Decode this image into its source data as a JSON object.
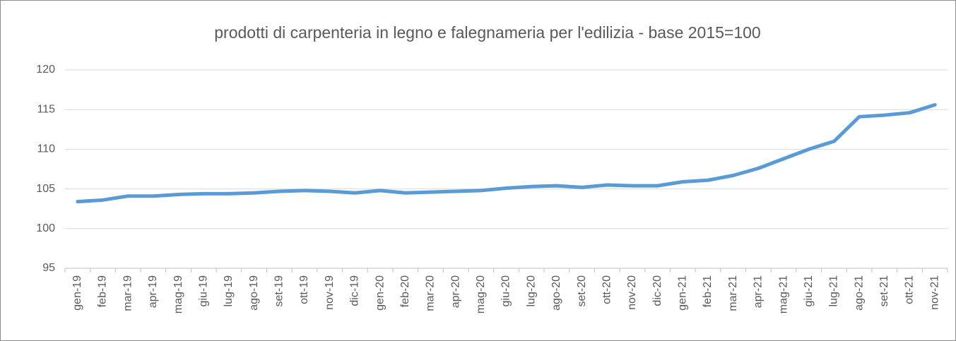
{
  "chart_data": {
    "type": "line",
    "title": "prodotti di carpenteria in legno e falegnameria per l'edilizia - base 2015=100",
    "categories": [
      "gen-19",
      "feb-19",
      "mar-19",
      "apr-19",
      "mag-19",
      "giu-19",
      "lug-19",
      "ago-19",
      "set-19",
      "ott-19",
      "nov-19",
      "dic-19",
      "gen-20",
      "feb-20",
      "mar-20",
      "apr-20",
      "mag-20",
      "giu-20",
      "lug-20",
      "ago-20",
      "set-20",
      "ott-20",
      "nov-20",
      "dic-20",
      "gen-21",
      "feb-21",
      "mar-21",
      "apr-21",
      "mag-21",
      "giu-21",
      "lug-21",
      "ago-21",
      "set-21",
      "ott-21",
      "nov-21"
    ],
    "values": [
      103.4,
      103.6,
      104.1,
      104.1,
      104.3,
      104.4,
      104.4,
      104.5,
      104.7,
      104.8,
      104.7,
      104.5,
      104.8,
      104.5,
      104.6,
      104.7,
      104.8,
      105.1,
      105.3,
      105.4,
      105.2,
      105.5,
      105.4,
      105.4,
      105.9,
      106.1,
      106.7,
      107.6,
      108.8,
      110.0,
      111.0,
      114.1,
      114.3,
      114.6,
      115.6
    ],
    "color": "#5b9bd5",
    "ylim": [
      95,
      120
    ],
    "yticks": [
      95,
      100,
      105,
      110,
      115,
      120
    ],
    "grid": true
  }
}
